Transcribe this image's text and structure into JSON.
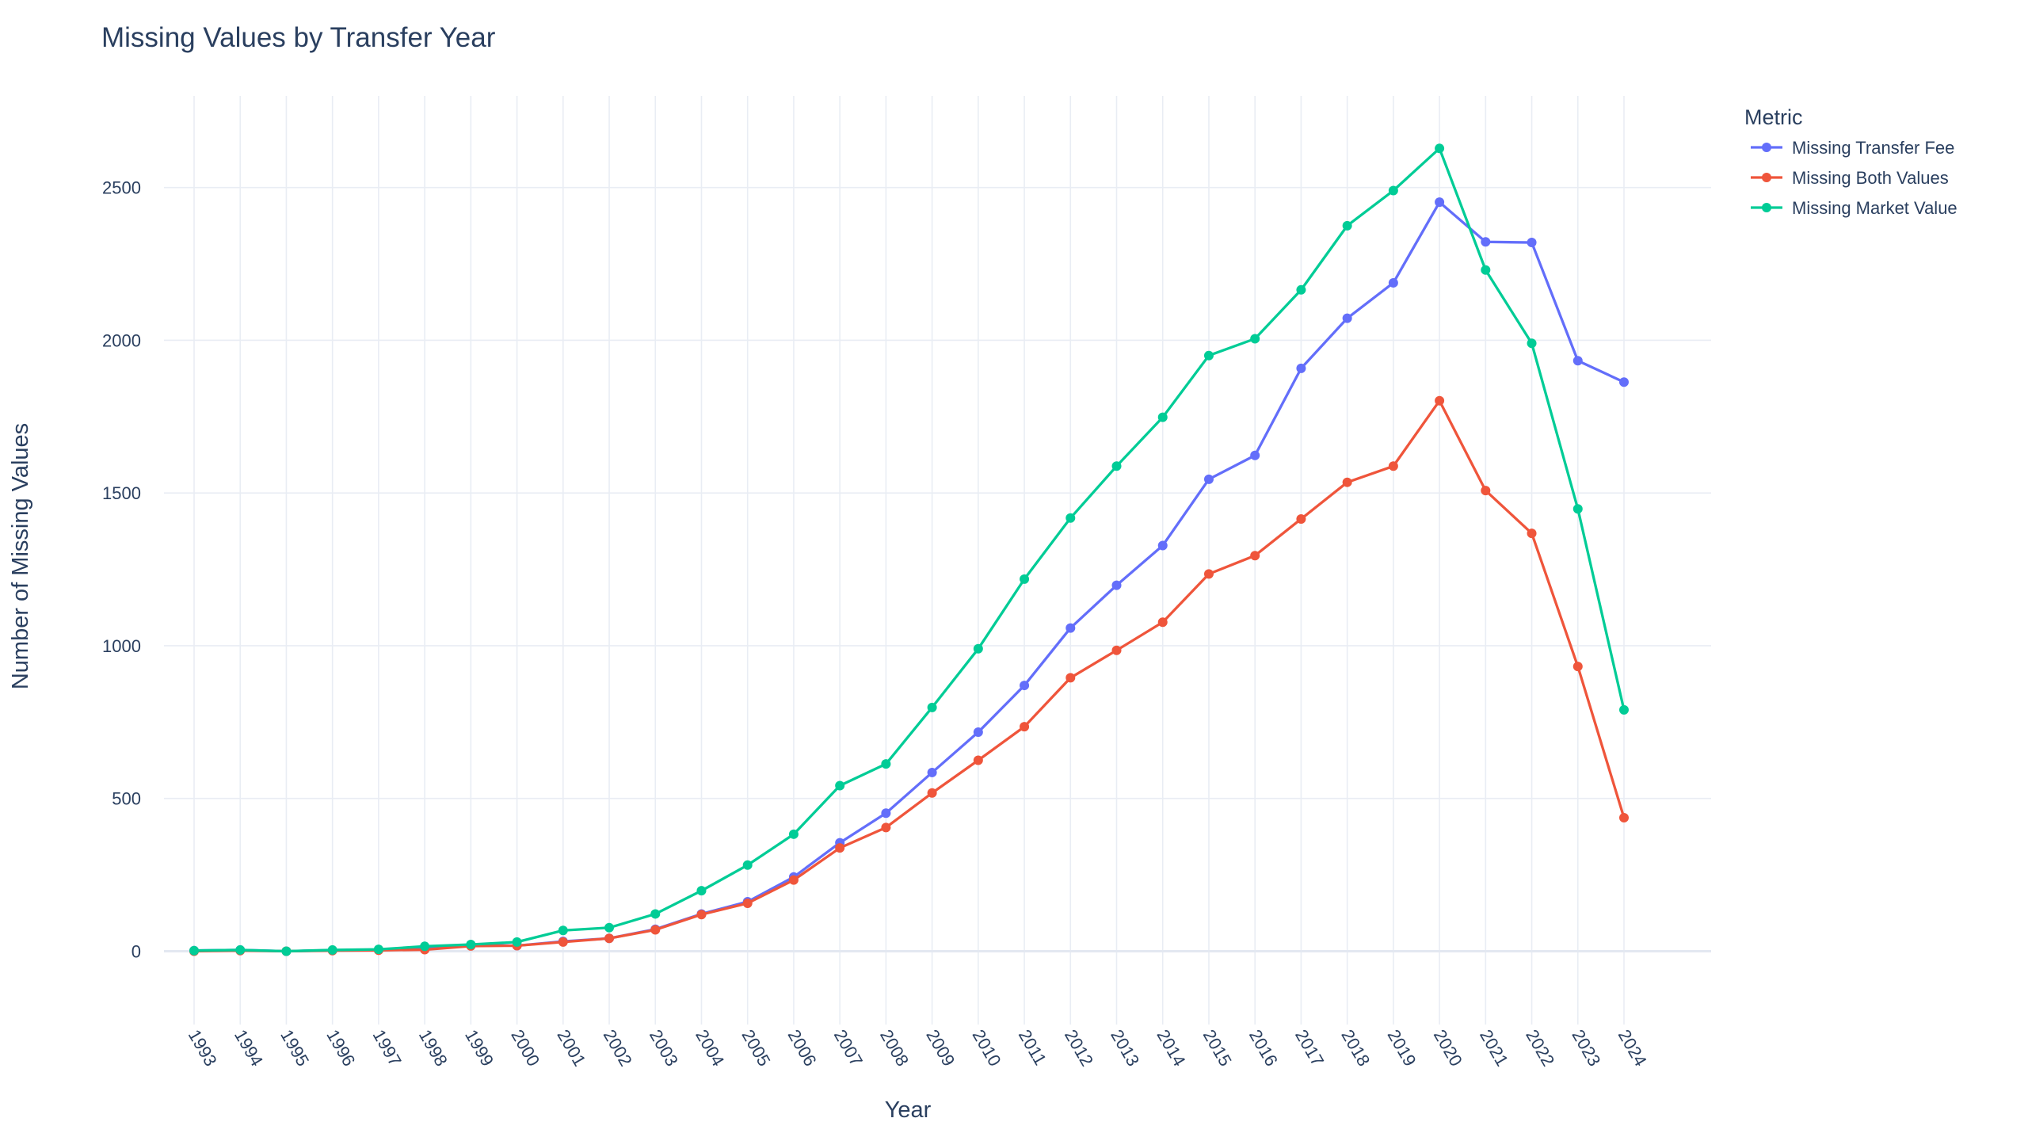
{
  "colors": {
    "text": "#2a3f5f",
    "grid": "#e9edf4",
    "background": "#ffffff"
  },
  "chart_data": {
    "type": "line",
    "title": "Missing Values by Transfer Year",
    "xlabel": "Year",
    "ylabel": "Number of Missing Values",
    "x": [
      "1993",
      "1994",
      "1995",
      "1996",
      "1997",
      "1998",
      "1999",
      "2000",
      "2001",
      "2002",
      "2003",
      "2004",
      "2005",
      "2006",
      "2007",
      "2008",
      "2009",
      "2010",
      "2011",
      "2012",
      "2013",
      "2014",
      "2015",
      "2016",
      "2017",
      "2018",
      "2019",
      "2020",
      "2021",
      "2022",
      "2023",
      "2024"
    ],
    "ylim": [
      -240,
      2800
    ],
    "y_ticks": [
      0,
      500,
      1000,
      1500,
      2000,
      2500
    ],
    "y_tick_labels": [
      "0",
      "500",
      "1000",
      "1500",
      "2000",
      "2500"
    ],
    "x_tick_angle": "rotated 60 degrees clockwise",
    "grid": true,
    "legend_title": "Metric",
    "legend_position": "top-right, outside plot",
    "series": [
      {
        "name": "Missing Transfer Fee",
        "color": "#636efa",
        "values": [
          2,
          4,
          0,
          3,
          4,
          8,
          20,
          18,
          32,
          42,
          72,
          122,
          162,
          243,
          355,
          452,
          585,
          717,
          870,
          1058,
          1198,
          1328,
          1545,
          1623,
          1908,
          2072,
          2188,
          2452,
          2322,
          2320,
          1933,
          1863
        ]
      },
      {
        "name": "Missing Both Values",
        "color": "#ef553b",
        "values": [
          0,
          2,
          0,
          2,
          3,
          5,
          17,
          18,
          30,
          42,
          70,
          120,
          157,
          233,
          338,
          405,
          518,
          625,
          735,
          895,
          985,
          1077,
          1235,
          1295,
          1415,
          1535,
          1588,
          1802,
          1508,
          1368,
          932,
          437
        ]
      },
      {
        "name": "Missing Market Value",
        "color": "#00cc96",
        "values": [
          2,
          4,
          0,
          4,
          6,
          16,
          22,
          30,
          68,
          77,
          122,
          198,
          282,
          383,
          542,
          613,
          798,
          990,
          1218,
          1418,
          1588,
          1748,
          1950,
          2005,
          2165,
          2375,
          2490,
          2628,
          2230,
          1990,
          1448,
          790
        ]
      }
    ]
  }
}
